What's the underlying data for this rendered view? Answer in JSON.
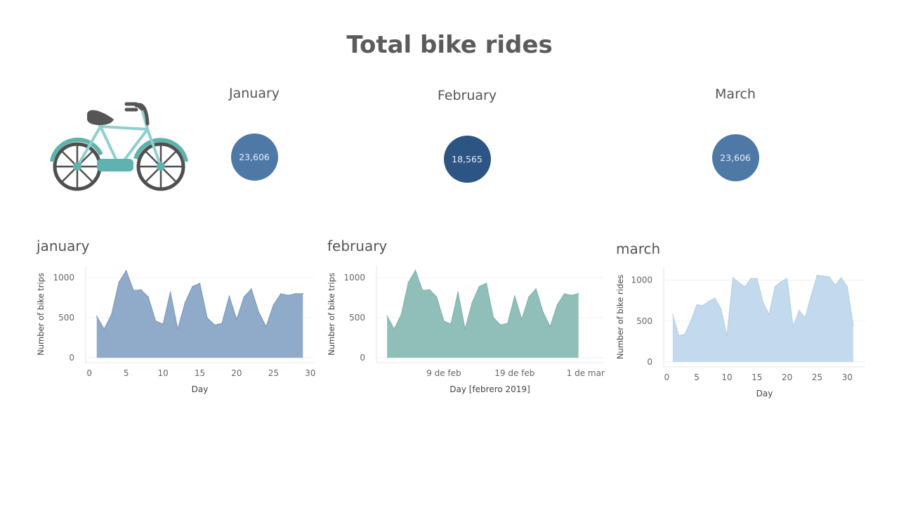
{
  "page": {
    "title": "Total bike rides"
  },
  "kpis": [
    {
      "label": "January",
      "value": "23,606",
      "color": "#4e79a7"
    },
    {
      "label": "February",
      "value": "18,565",
      "color": "#2c5583"
    },
    {
      "label": "March",
      "value": "23,606",
      "color": "#4e79a7"
    }
  ],
  "icon": {
    "name": "bicycle-icon"
  },
  "chart_data": [
    {
      "type": "area",
      "title": "january",
      "xlabel": "Day",
      "ylabel": "Number of bike trips",
      "x_ticks": [
        0,
        5,
        10,
        15,
        20,
        25,
        30
      ],
      "x_tick_labels": [
        "0",
        "5",
        "10",
        "15",
        "20",
        "25",
        "30"
      ],
      "y_ticks": [
        0,
        500,
        1000
      ],
      "y_tick_labels": [
        "0",
        "500",
        "1000"
      ],
      "xlim": [
        -0.5,
        30.5
      ],
      "ylim": [
        -60,
        1150
      ],
      "color": "#8fabc9",
      "stroke": "#7896bb",
      "x": [
        1,
        2,
        3,
        4,
        5,
        6,
        7,
        8,
        9,
        10,
        11,
        12,
        13,
        14,
        15,
        16,
        17,
        18,
        19,
        20,
        21,
        22,
        23,
        24,
        25,
        26,
        27,
        28,
        29
      ],
      "values": [
        520,
        360,
        540,
        940,
        1090,
        840,
        850,
        760,
        460,
        420,
        820,
        360,
        690,
        890,
        930,
        500,
        410,
        430,
        770,
        480,
        760,
        860,
        570,
        390,
        660,
        800,
        780,
        800,
        800
      ]
    },
    {
      "type": "area",
      "title": "february",
      "xlabel": "Day [febrero 2019]",
      "ylabel": "Number of bike trips",
      "x_ticks": [
        9,
        19,
        29
      ],
      "x_tick_labels": [
        "9 de feb",
        "19 de feb",
        "1 de mar"
      ],
      "y_ticks": [
        0,
        500,
        1000
      ],
      "y_tick_labels": [
        "0",
        "500",
        "1000"
      ],
      "xlim": [
        -0.5,
        31.5
      ],
      "ylim": [
        -60,
        1150
      ],
      "color": "#8fbfb8",
      "stroke": "#7aafa8",
      "x": [
        1,
        2,
        3,
        4,
        5,
        6,
        7,
        8,
        9,
        10,
        11,
        12,
        13,
        14,
        15,
        16,
        17,
        18,
        19,
        20,
        21,
        22,
        23,
        24,
        25,
        26,
        27,
        28
      ],
      "values": [
        520,
        360,
        540,
        940,
        1090,
        840,
        850,
        760,
        460,
        420,
        820,
        360,
        690,
        890,
        930,
        500,
        410,
        430,
        770,
        480,
        760,
        860,
        570,
        390,
        660,
        800,
        780,
        800
      ]
    },
    {
      "type": "area",
      "title": "march",
      "xlabel": "Day",
      "ylabel": "Number of bike rides",
      "x_ticks": [
        0,
        5,
        10,
        15,
        20,
        25,
        30
      ],
      "x_tick_labels": [
        "0",
        "5",
        "10",
        "15",
        "20",
        "25",
        "30"
      ],
      "y_ticks": [
        0,
        500,
        1000
      ],
      "y_tick_labels": [
        "0",
        "500",
        "1000"
      ],
      "xlim": [
        -0.5,
        33
      ],
      "ylim": [
        -60,
        1160
      ],
      "color": "#c3d9ed",
      "stroke": "#b3cde6",
      "x": [
        1,
        2,
        3,
        4,
        5,
        6,
        7,
        8,
        9,
        10,
        11,
        12,
        13,
        14,
        15,
        16,
        17,
        18,
        19,
        20,
        21,
        22,
        23,
        24,
        25,
        26,
        27,
        28,
        29,
        30,
        31
      ],
      "values": [
        580,
        320,
        340,
        500,
        700,
        690,
        740,
        780,
        650,
        320,
        1030,
        970,
        920,
        1020,
        1020,
        730,
        580,
        920,
        980,
        1020,
        430,
        630,
        540,
        810,
        1060,
        1050,
        1040,
        940,
        1030,
        920,
        450
      ]
    }
  ]
}
